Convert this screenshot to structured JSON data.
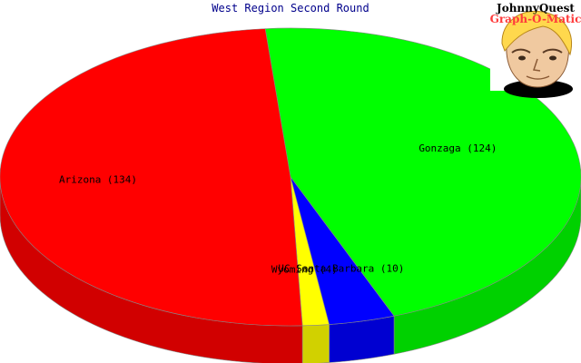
{
  "chart_data": {
    "type": "pie",
    "title": "West Region Second Round",
    "slices": [
      {
        "label": "Gonzaga (124)",
        "value": 124,
        "color": "#00ff00"
      },
      {
        "label": "UC Santa Barbara (10)",
        "value": 10,
        "color": "#0000ff"
      },
      {
        "label": "Wyoming (4)",
        "value": 4,
        "color": "#ffff00"
      },
      {
        "label": "Arizona (134)",
        "value": 134,
        "color": "#ff0000"
      }
    ],
    "style": "3d-tilted"
  },
  "logo": {
    "line1": "JohnnyQuest",
    "line2": "Graph-O-Matic"
  }
}
